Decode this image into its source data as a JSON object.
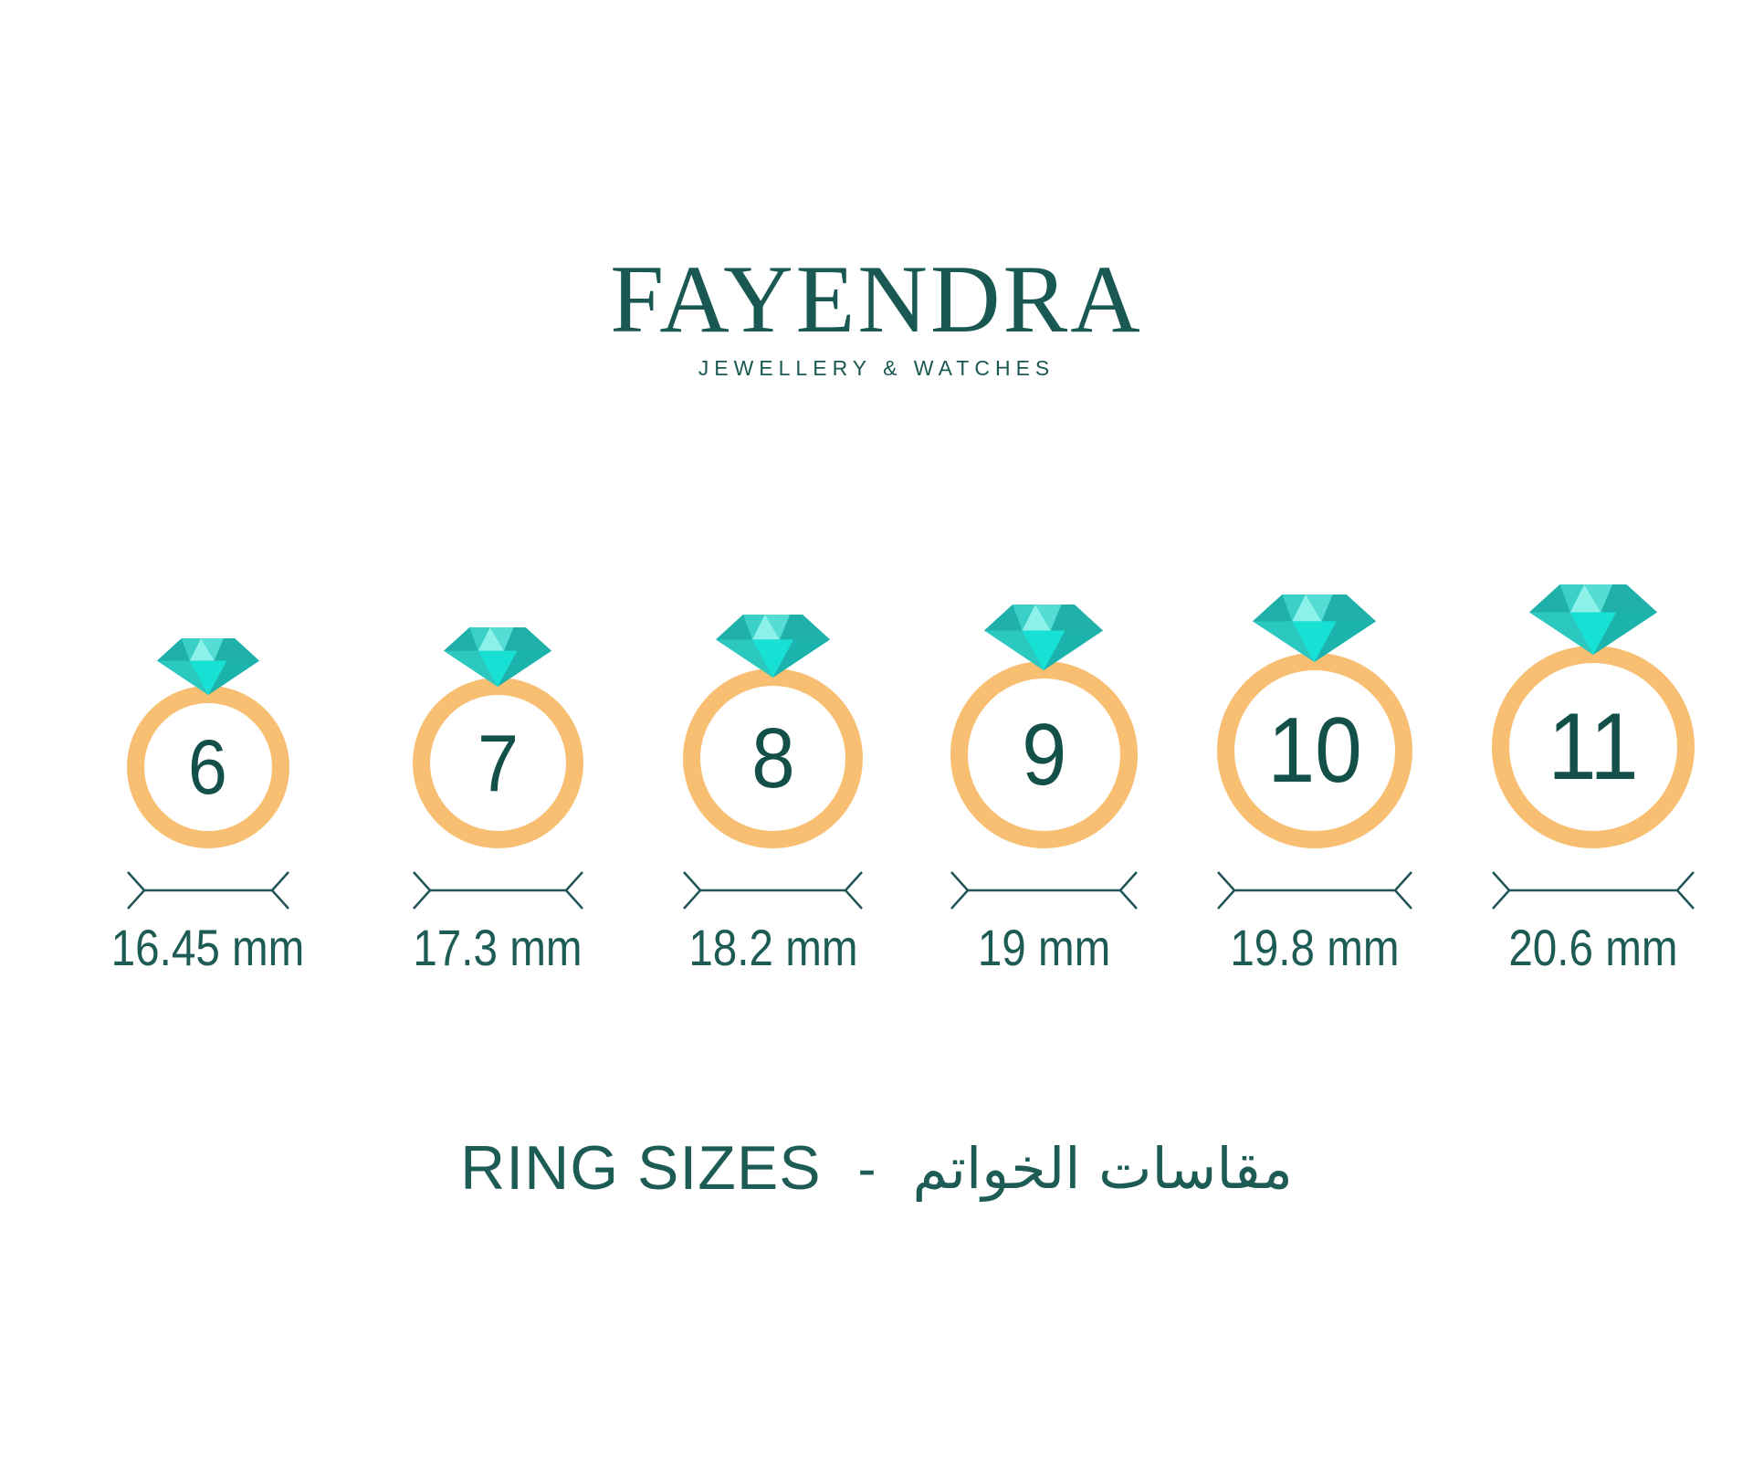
{
  "logo": {
    "name": "FAYENDRA",
    "tagline": "JEWELLERY & WATCHES"
  },
  "rings": [
    {
      "size": "6",
      "diameter_mm": 16.45,
      "diameter_label": "16.45 mm"
    },
    {
      "size": "7",
      "diameter_mm": 17.3,
      "diameter_label": "17.3 mm"
    },
    {
      "size": "8",
      "diameter_mm": 18.2,
      "diameter_label": "18.2 mm"
    },
    {
      "size": "9",
      "diameter_mm": 19.0,
      "diameter_label": "19 mm"
    },
    {
      "size": "10",
      "diameter_mm": 19.8,
      "diameter_label": "19.8 mm"
    },
    {
      "size": "11",
      "diameter_mm": 20.6,
      "diameter_label": "20.6 mm"
    }
  ],
  "caption": {
    "en": "RING SIZES",
    "separator": "-",
    "ar": "مقاسات الخواتم"
  },
  "colors": {
    "brand_teal": "#1A5953",
    "text_teal": "#1D5B55",
    "number_teal": "#14504A",
    "band_orange": "#F8BE71",
    "dimension_line": "#1F5356",
    "diamond_base": "#2BC8C0",
    "diamond_crown_light": "#8BF1E9",
    "diamond_crown_mid": "#55DCD4",
    "diamond_crown_dark": "#1FB0A9",
    "diamond_crown_left": "#3ACFC7",
    "diamond_pavilion_center": "#17E0D5",
    "diamond_pavilion_right": "#1BB3AC"
  }
}
